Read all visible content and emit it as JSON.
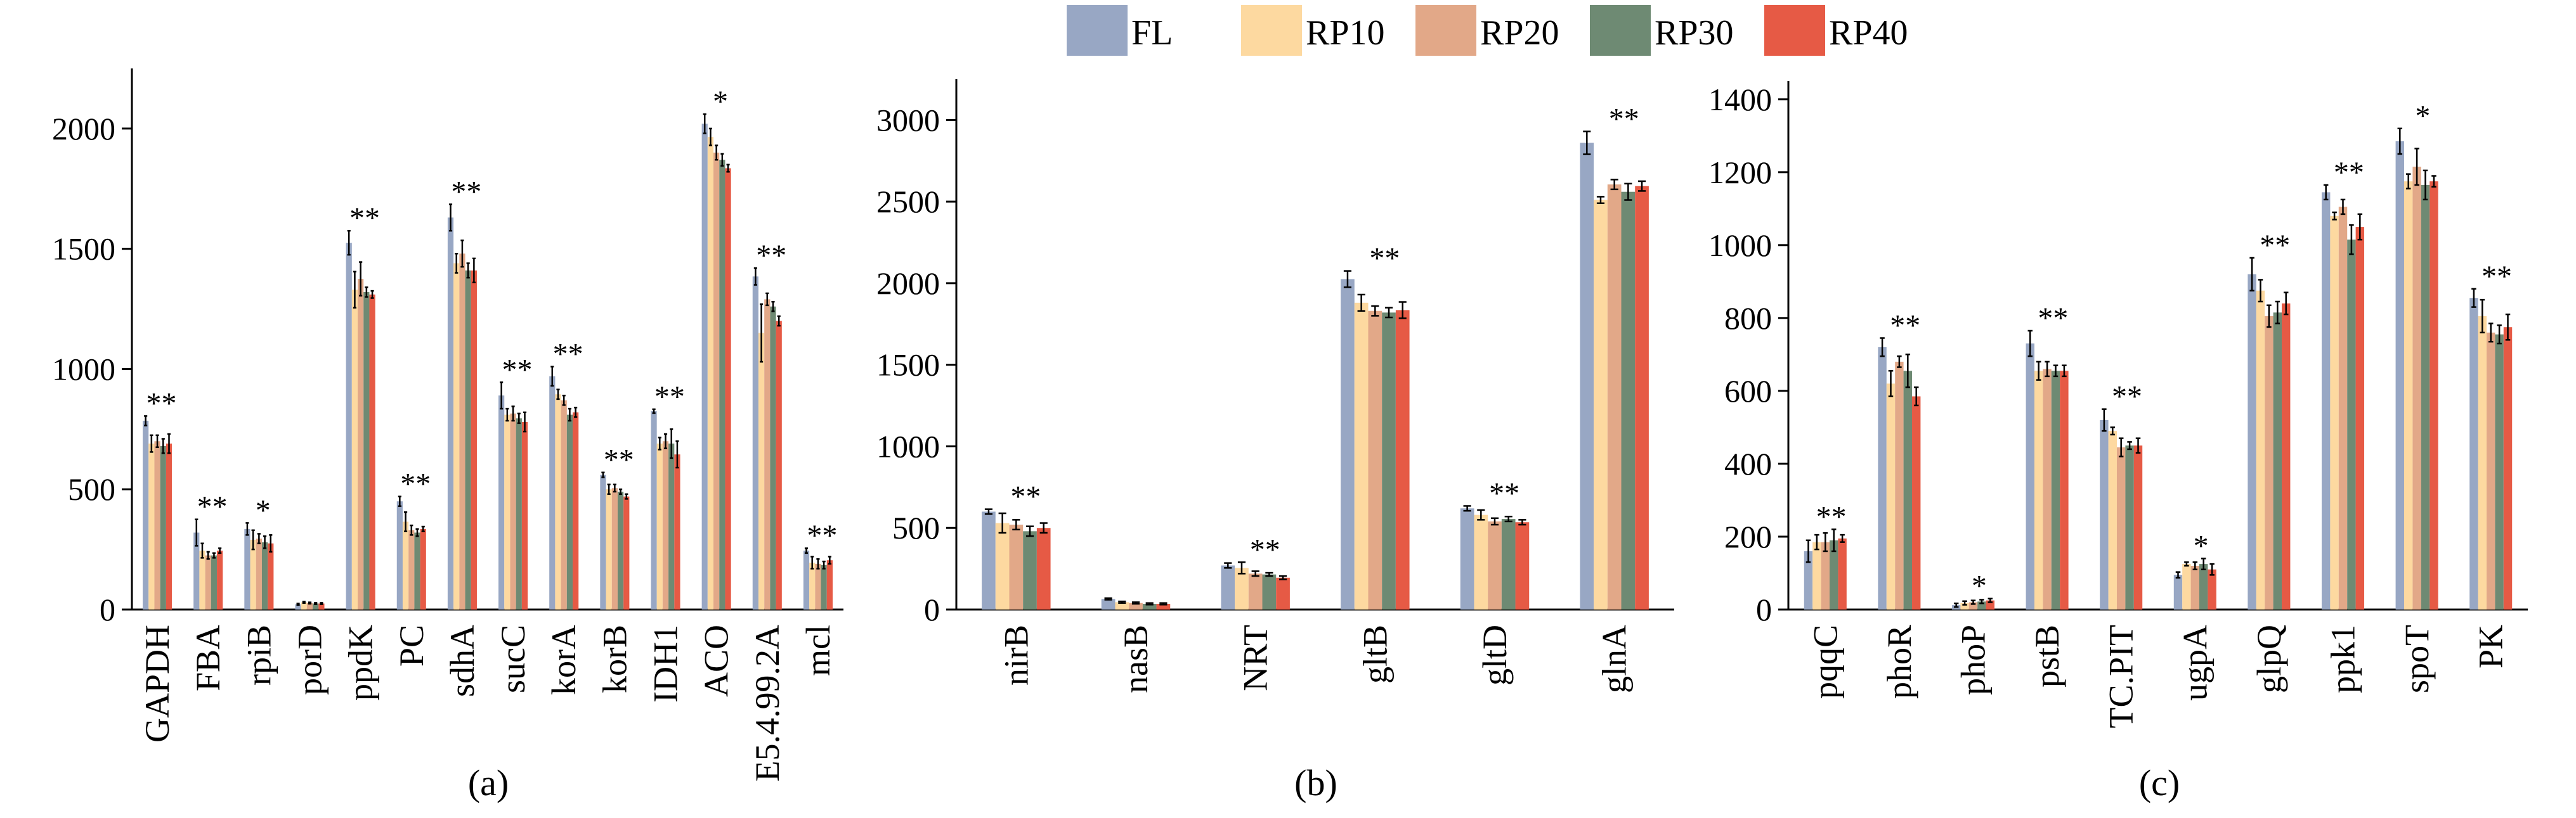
{
  "colors": {
    "FL": "#98A7C4",
    "RP10": "#FDD9A0",
    "RP20": "#E2A888",
    "RP30": "#6E8A73",
    "RP40": "#E65A45"
  },
  "chart_data": [
    {
      "type": "bar",
      "label": "(a)",
      "series_names": [
        "FL",
        "RP10",
        "RP20",
        "RP30",
        "RP40"
      ],
      "categories": [
        "GAPDH",
        "FBA",
        "rpiB",
        "porD",
        "ppdK",
        "PC",
        "sdhA",
        "sucC",
        "korA",
        "korB",
        "IDH1",
        "ACO",
        "E5.4.99.2A",
        "mcl"
      ],
      "series": [
        {
          "name": "FL",
          "values": [
            785,
            320,
            335,
            22,
            1525,
            450,
            1630,
            890,
            970,
            560,
            825,
            2020,
            1385,
            245
          ]
        },
        {
          "name": "RP10",
          "values": [
            690,
            245,
            290,
            30,
            1330,
            365,
            1440,
            810,
            895,
            500,
            690,
            1965,
            1150,
            195
          ]
        },
        {
          "name": "RP20",
          "values": [
            700,
            225,
            295,
            27,
            1375,
            330,
            1480,
            815,
            870,
            505,
            700,
            1900,
            1290,
            190
          ]
        },
        {
          "name": "RP30",
          "values": [
            680,
            225,
            280,
            25,
            1320,
            320,
            1410,
            795,
            810,
            490,
            690,
            1870,
            1260,
            185
          ]
        },
        {
          "name": "RP40",
          "values": [
            690,
            245,
            275,
            25,
            1310,
            335,
            1410,
            780,
            820,
            470,
            645,
            1835,
            1200,
            205
          ]
        }
      ],
      "errors": [
        [
          20,
          55,
          25,
          3,
          50,
          20,
          55,
          55,
          40,
          10,
          8,
          40,
          35,
          10
        ],
        [
          35,
          30,
          40,
          3,
          75,
          40,
          40,
          25,
          20,
          20,
          25,
          35,
          120,
          25
        ],
        [
          25,
          15,
          20,
          3,
          70,
          20,
          55,
          30,
          20,
          15,
          30,
          30,
          25,
          20
        ],
        [
          30,
          10,
          25,
          3,
          20,
          15,
          30,
          20,
          25,
          10,
          60,
          25,
          20,
          15
        ],
        [
          40,
          10,
          35,
          3,
          15,
          10,
          50,
          40,
          20,
          10,
          55,
          15,
          20,
          15
        ]
      ],
      "significance": [
        "**",
        "**",
        "*",
        "",
        "**",
        "**",
        "**",
        "**",
        "**",
        "**",
        "**",
        "*",
        "**",
        "**"
      ],
      "ylim": [
        0,
        2250
      ],
      "yticks": [
        0,
        500,
        1000,
        1500,
        2000
      ]
    },
    {
      "type": "bar",
      "label": "(b)",
      "series_names": [
        "FL",
        "RP10",
        "RP20",
        "RP30",
        "RP40"
      ],
      "categories": [
        "nirB",
        "nasB",
        "NRT",
        "gltB",
        "gltD",
        "glnA"
      ],
      "series": [
        {
          "name": "FL",
          "values": [
            600,
            65,
            270,
            2025,
            620,
            2860
          ]
        },
        {
          "name": "RP10",
          "values": [
            530,
            45,
            255,
            1880,
            580,
            2510
          ]
        },
        {
          "name": "RP20",
          "values": [
            520,
            40,
            220,
            1830,
            540,
            2605
          ]
        },
        {
          "name": "RP30",
          "values": [
            480,
            35,
            215,
            1820,
            555,
            2560
          ]
        },
        {
          "name": "RP40",
          "values": [
            500,
            35,
            195,
            1835,
            535,
            2595
          ]
        }
      ],
      "errors": [
        [
          15,
          5,
          15,
          50,
          15,
          70
        ],
        [
          60,
          5,
          35,
          50,
          30,
          20
        ],
        [
          30,
          5,
          15,
          30,
          20,
          30
        ],
        [
          30,
          5,
          10,
          30,
          15,
          50
        ],
        [
          30,
          5,
          10,
          50,
          15,
          30
        ]
      ],
      "significance": [
        "**",
        "",
        "**",
        "**",
        "**",
        "**"
      ],
      "ylim": [
        0,
        3250
      ],
      "yticks": [
        0,
        500,
        1000,
        1500,
        2000,
        2500,
        3000
      ]
    },
    {
      "type": "bar",
      "label": "(c)",
      "series_names": [
        "FL",
        "RP10",
        "RP20",
        "RP30",
        "RP40"
      ],
      "categories": [
        "pqqC",
        "phoR",
        "phoP",
        "pstB",
        "TC.PIT",
        "ugpA",
        "glpQ",
        "ppk1",
        "spoT",
        "PK"
      ],
      "series": [
        {
          "name": "FL",
          "values": [
            160,
            720,
            12,
            730,
            520,
            95,
            920,
            1145,
            1285,
            855
          ]
        },
        {
          "name": "RP10",
          "values": [
            185,
            620,
            18,
            655,
            490,
            125,
            875,
            1080,
            1175,
            805
          ]
        },
        {
          "name": "RP20",
          "values": [
            185,
            680,
            20,
            660,
            445,
            120,
            805,
            1105,
            1215,
            760
          ]
        },
        {
          "name": "RP30",
          "values": [
            190,
            655,
            22,
            655,
            450,
            125,
            815,
            1015,
            1165,
            755
          ]
        },
        {
          "name": "RP40",
          "values": [
            195,
            585,
            25,
            655,
            450,
            110,
            840,
            1050,
            1175,
            775
          ]
        }
      ],
      "errors": [
        [
          30,
          25,
          5,
          35,
          30,
          8,
          45,
          20,
          35,
          25
        ],
        [
          20,
          35,
          5,
          25,
          10,
          5,
          30,
          10,
          20,
          45
        ],
        [
          25,
          15,
          5,
          20,
          25,
          10,
          30,
          20,
          50,
          25
        ],
        [
          30,
          45,
          5,
          15,
          10,
          15,
          30,
          40,
          40,
          25
        ],
        [
          10,
          25,
          5,
          15,
          20,
          15,
          30,
          35,
          15,
          35
        ]
      ],
      "significance": [
        "**",
        "**",
        "*",
        "**",
        "**",
        "*",
        "**",
        "**",
        "*",
        "**"
      ],
      "ylim": [
        0,
        1450
      ],
      "yticks": [
        0,
        200,
        400,
        600,
        800,
        1000,
        1200,
        1400
      ]
    }
  ]
}
